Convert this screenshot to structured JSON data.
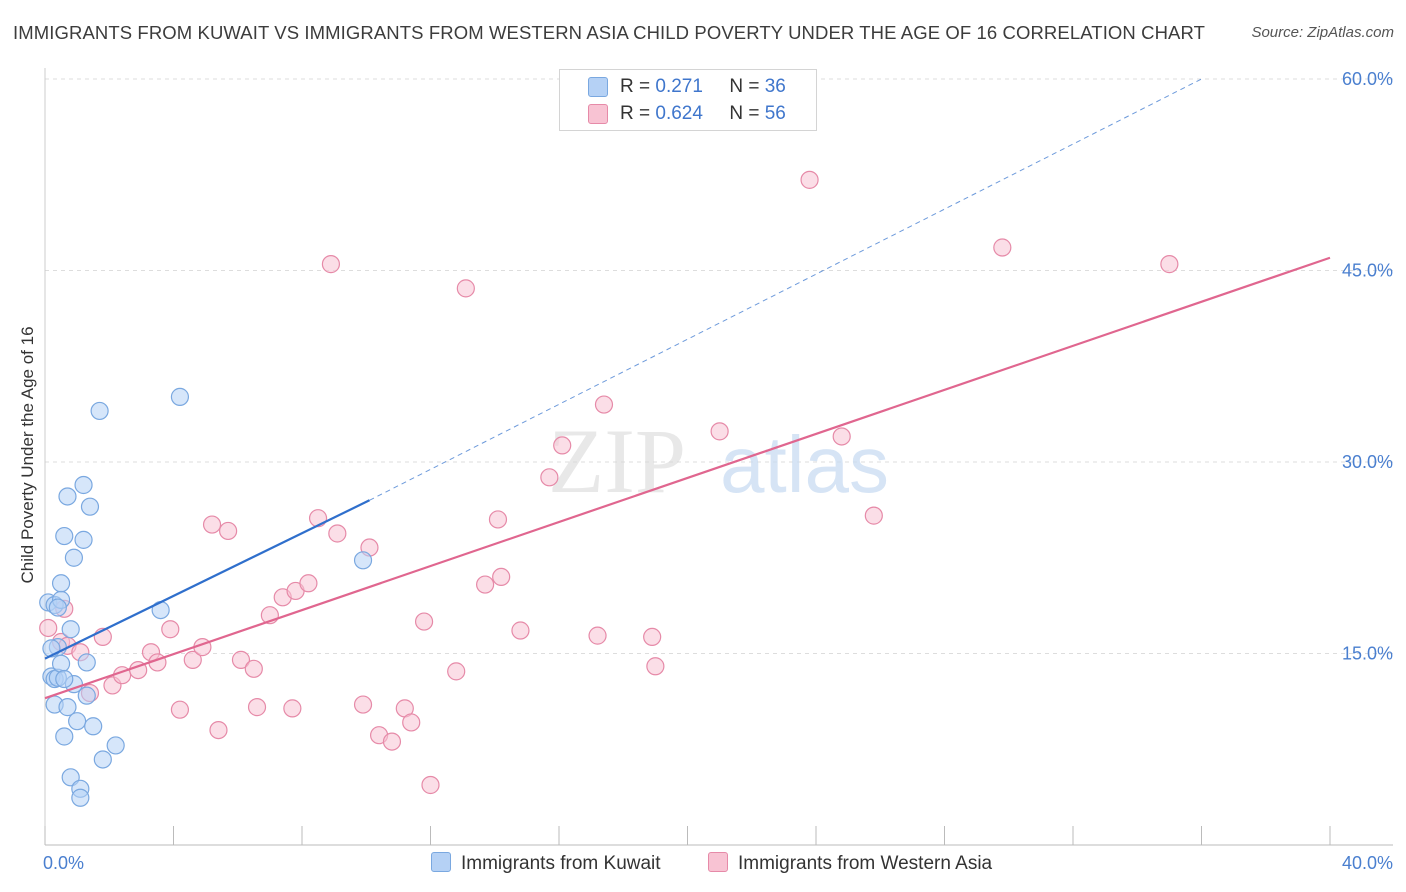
{
  "title": "IMMIGRANTS FROM KUWAIT VS IMMIGRANTS FROM WESTERN ASIA CHILD POVERTY UNDER THE AGE OF 16 CORRELATION CHART",
  "source": "Source: ZipAtlas.com",
  "watermark": {
    "zip": "ZIP",
    "atlas": "atlas"
  },
  "legend": {
    "rows": [
      {
        "r_label": "R =",
        "r_value": "0.271",
        "n_label": "N =",
        "n_value": "36",
        "color": "#b5d1f5"
      },
      {
        "r_label": "R =",
        "r_value": "0.624",
        "n_label": "N =",
        "n_value": "56",
        "color": "#f8c3d3"
      }
    ]
  },
  "bottom_legend": {
    "kuwait": "Immigrants from Kuwait",
    "western_asia": "Immigrants from Western Asia"
  },
  "colors": {
    "kuwait_fill": "#b5d1f5",
    "kuwait_stroke": "#7aa8e0",
    "kuwait_line": "#2f6fcc",
    "wa_fill": "#f8c3d3",
    "wa_stroke": "#e68aa8",
    "wa_line": "#e0668f",
    "grid": "#dddddd",
    "tick_label": "#4a7fcf"
  },
  "chart_data": {
    "type": "scatter",
    "xlabel": "",
    "ylabel": "Child Poverty Under the Age of 16",
    "xlim": [
      0,
      40
    ],
    "ylim": [
      0,
      60
    ],
    "x_tick_labels": [
      "0.0%",
      "40.0%"
    ],
    "y_ticks": [
      15,
      30,
      45,
      60
    ],
    "y_tick_labels": [
      "15.0%",
      "30.0%",
      "45.0%",
      "60.0%"
    ],
    "grid": true,
    "legend_position": "top-center",
    "series": [
      {
        "name": "Immigrants from Kuwait",
        "points": [
          [
            0.1,
            19.0
          ],
          [
            0.2,
            13.2
          ],
          [
            0.3,
            18.8
          ],
          [
            0.3,
            13.0
          ],
          [
            0.3,
            11.0
          ],
          [
            0.4,
            13.1
          ],
          [
            0.4,
            15.5
          ],
          [
            0.5,
            14.2
          ],
          [
            0.5,
            19.2
          ],
          [
            0.5,
            20.5
          ],
          [
            0.6,
            24.2
          ],
          [
            0.6,
            8.5
          ],
          [
            0.7,
            10.8
          ],
          [
            0.7,
            27.3
          ],
          [
            0.8,
            5.3
          ],
          [
            0.8,
            16.9
          ],
          [
            0.9,
            12.6
          ],
          [
            0.9,
            22.5
          ],
          [
            1.0,
            9.7
          ],
          [
            1.1,
            4.4
          ],
          [
            1.1,
            3.7
          ],
          [
            1.2,
            28.2
          ],
          [
            1.2,
            23.9
          ],
          [
            1.3,
            11.7
          ],
          [
            1.3,
            14.3
          ],
          [
            1.4,
            26.5
          ],
          [
            1.5,
            9.3
          ],
          [
            1.7,
            34.0
          ],
          [
            1.8,
            6.7
          ],
          [
            2.2,
            7.8
          ],
          [
            3.6,
            18.4
          ],
          [
            4.2,
            35.1
          ],
          [
            9.9,
            22.3
          ],
          [
            0.2,
            15.4
          ],
          [
            0.4,
            18.6
          ],
          [
            0.6,
            13.0
          ]
        ],
        "trend": {
          "x0": 0.0,
          "y0": 14.6,
          "x1": 10.1,
          "y1": 27.0,
          "dashed_to_x": 36.0,
          "dashed_to_y": 60.0
        }
      },
      {
        "name": "Immigrants from Western Asia",
        "points": [
          [
            0.1,
            17.0
          ],
          [
            0.5,
            15.9
          ],
          [
            0.7,
            15.6
          ],
          [
            1.1,
            15.1
          ],
          [
            1.4,
            11.9
          ],
          [
            1.8,
            16.3
          ],
          [
            2.1,
            12.5
          ],
          [
            2.4,
            13.3
          ],
          [
            2.9,
            13.7
          ],
          [
            3.3,
            15.1
          ],
          [
            3.5,
            14.3
          ],
          [
            3.9,
            16.9
          ],
          [
            4.2,
            10.6
          ],
          [
            4.6,
            14.5
          ],
          [
            4.9,
            15.5
          ],
          [
            5.2,
            25.1
          ],
          [
            5.4,
            9.0
          ],
          [
            5.7,
            24.6
          ],
          [
            6.1,
            14.5
          ],
          [
            6.5,
            13.8
          ],
          [
            6.6,
            10.8
          ],
          [
            7.0,
            18.0
          ],
          [
            7.4,
            19.4
          ],
          [
            7.7,
            10.7
          ],
          [
            7.8,
            19.9
          ],
          [
            8.2,
            20.5
          ],
          [
            8.5,
            25.6
          ],
          [
            8.9,
            45.5
          ],
          [
            9.1,
            24.4
          ],
          [
            9.9,
            11.0
          ],
          [
            10.1,
            23.3
          ],
          [
            10.4,
            8.6
          ],
          [
            10.8,
            8.1
          ],
          [
            11.2,
            10.7
          ],
          [
            11.4,
            9.6
          ],
          [
            11.8,
            17.5
          ],
          [
            12.0,
            4.7
          ],
          [
            12.8,
            13.6
          ],
          [
            13.1,
            43.6
          ],
          [
            13.7,
            20.4
          ],
          [
            14.1,
            25.5
          ],
          [
            14.2,
            21.0
          ],
          [
            14.8,
            16.8
          ],
          [
            15.7,
            28.8
          ],
          [
            16.1,
            31.3
          ],
          [
            17.2,
            16.4
          ],
          [
            17.4,
            34.5
          ],
          [
            18.9,
            16.3
          ],
          [
            19.0,
            14.0
          ],
          [
            21.0,
            32.4
          ],
          [
            23.8,
            52.1
          ],
          [
            24.8,
            32.0
          ],
          [
            25.8,
            25.8
          ],
          [
            29.8,
            46.8
          ],
          [
            35.0,
            45.5
          ],
          [
            0.6,
            18.5
          ]
        ],
        "trend": {
          "x0": 0.0,
          "y0": 11.5,
          "x1": 40.0,
          "y1": 46.0
        }
      }
    ]
  }
}
